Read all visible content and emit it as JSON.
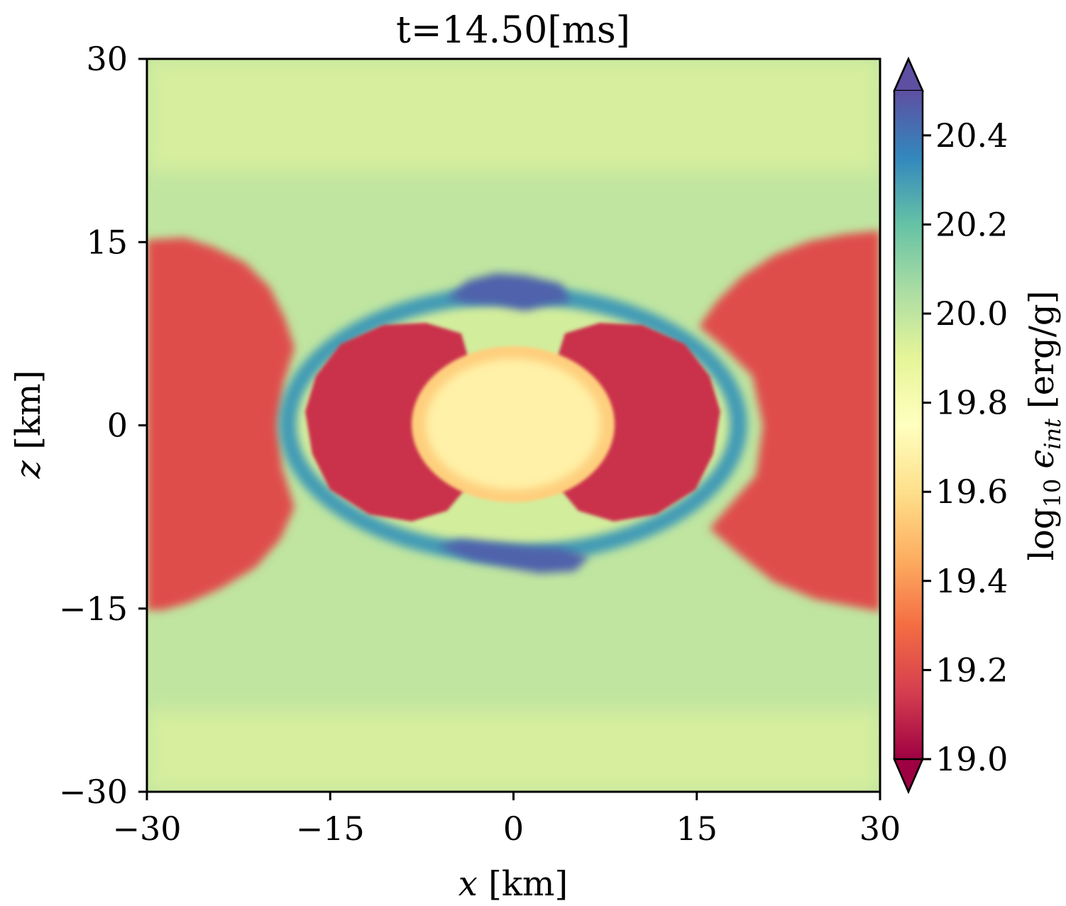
{
  "chart_data": {
    "type": "heatmap",
    "title": "t=14.50[ms]",
    "xlabel": {
      "var": "x",
      "unit": "[km]"
    },
    "ylabel": {
      "var": "z",
      "unit": "[km]"
    },
    "xlim": [
      -30,
      30
    ],
    "ylim": [
      -30,
      30
    ],
    "xticks": [
      -30,
      -15,
      0,
      15,
      30
    ],
    "yticks": [
      -30,
      -15,
      0,
      15,
      30
    ],
    "xtick_labels": [
      "−30",
      "−15",
      "0",
      "15",
      "30"
    ],
    "ytick_labels": [
      "−30",
      "−15",
      "0",
      "15",
      "30"
    ],
    "colorbar": {
      "label": {
        "prefix": "log",
        "sub10": "10",
        "eps": "ϵ",
        "sub_int": "int",
        "unit": "[erg/g]"
      },
      "range": [
        19.0,
        20.5
      ],
      "extend": "both",
      "ticks": [
        19.0,
        19.2,
        19.4,
        19.6,
        19.8,
        20.0,
        20.2,
        20.4
      ],
      "tick_labels": [
        "19.0",
        "19.2",
        "19.4",
        "19.6",
        "19.8",
        "20.0",
        "20.2",
        "20.4"
      ],
      "colormap": "Spectral",
      "colors": [
        "#9e0142",
        "#d53e4f",
        "#f46d43",
        "#fdae61",
        "#fee08b",
        "#ffffbf",
        "#e6f598",
        "#abdda4",
        "#66c2a5",
        "#3288bd",
        "#5e4fa2"
      ]
    },
    "regions": [
      {
        "name": "core",
        "level": 19.68
      },
      {
        "name": "core-rim",
        "level": 19.55
      },
      {
        "name": "inner-lobes",
        "level": 19.12
      },
      {
        "name": "outer-equatorial-lobes",
        "level": 19.2
      },
      {
        "name": "shell",
        "level": 20.3
      },
      {
        "name": "polar-dense-patches",
        "level": 20.45
      },
      {
        "name": "background",
        "level": 20.0
      }
    ]
  }
}
